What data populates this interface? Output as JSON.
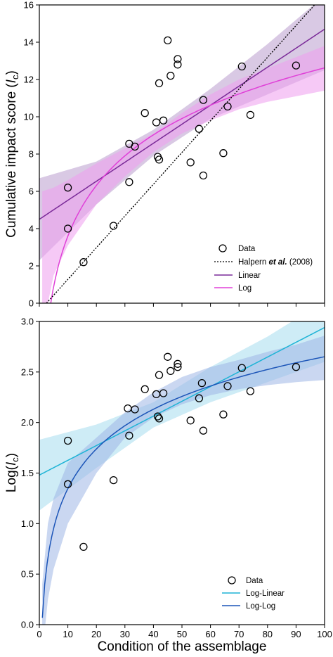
{
  "chart_data": [
    {
      "type": "scatter",
      "panel": "top",
      "ylabel": "Cumulative impact score",
      "ylabel_symbol": "I",
      "ylabel_sub": "c",
      "xlim": [
        0,
        100
      ],
      "ylim": [
        0,
        16
      ],
      "xticks": [
        0,
        10,
        20,
        30,
        40,
        50,
        60,
        70,
        80,
        90,
        100
      ],
      "yticks": [
        "0",
        "2",
        "4",
        "6",
        "8",
        "10",
        "12",
        "14",
        "16"
      ],
      "grid": false,
      "legend_position": "bottom-right",
      "legend": {
        "data": "Data",
        "halpern_prefix": "Halpern ",
        "halpern_etal": "et al.",
        "halpern_year": " (2008)",
        "linear": "Linear",
        "log": "Log"
      },
      "points": [
        {
          "x": 10,
          "y": 6.2
        },
        {
          "x": 10,
          "y": 4.0
        },
        {
          "x": 15.5,
          "y": 2.2
        },
        {
          "x": 26,
          "y": 4.15
        },
        {
          "x": 31.5,
          "y": 6.5
        },
        {
          "x": 31.5,
          "y": 8.55
        },
        {
          "x": 33.5,
          "y": 8.4
        },
        {
          "x": 37,
          "y": 10.2
        },
        {
          "x": 41,
          "y": 9.7
        },
        {
          "x": 41.5,
          "y": 7.85
        },
        {
          "x": 42,
          "y": 7.7
        },
        {
          "x": 42,
          "y": 11.8
        },
        {
          "x": 43.5,
          "y": 9.8
        },
        {
          "x": 45,
          "y": 14.1
        },
        {
          "x": 46,
          "y": 12.2
        },
        {
          "x": 48.5,
          "y": 13.1
        },
        {
          "x": 48.5,
          "y": 12.8
        },
        {
          "x": 53,
          "y": 7.55
        },
        {
          "x": 56,
          "y": 9.35
        },
        {
          "x": 57.5,
          "y": 10.9
        },
        {
          "x": 57.5,
          "y": 6.85
        },
        {
          "x": 64.5,
          "y": 8.05
        },
        {
          "x": 66,
          "y": 10.55
        },
        {
          "x": 71,
          "y": 12.7
        },
        {
          "x": 74,
          "y": 10.1
        },
        {
          "x": 90,
          "y": 12.75
        }
      ],
      "halpern_line": {
        "x": [
          2.5,
          96.5
        ],
        "y": [
          0,
          16
        ]
      },
      "linear_fit": {
        "intercept": 4.5,
        "slope": 0.102,
        "ci_low_x": [
          0,
          20,
          40,
          60,
          80,
          100
        ],
        "ci_low": [
          2.3,
          5.3,
          7.9,
          9.9,
          11.2,
          12.5
        ],
        "ci_high": [
          6.7,
          7.6,
          9.3,
          11.5,
          13.9,
          16.5
        ]
      },
      "log_fit": {
        "a": -5.43,
        "b": 3.92,
        "ci_x": [
          1,
          3,
          5,
          10,
          20,
          30,
          40,
          50,
          60,
          70,
          80,
          90,
          100
        ],
        "ci_low": [
          -3,
          0,
          1.5,
          3.1,
          5.3,
          6.8,
          8.1,
          9.1,
          9.8,
          10.4,
          10.8,
          11.1,
          11.4
        ],
        "ci_high": [
          6,
          6.1,
          6.2,
          6.6,
          7.5,
          8.3,
          9.1,
          10.2,
          11.2,
          12,
          12.6,
          13.2,
          13.8
        ]
      },
      "colors": {
        "linear": "#7a2a98",
        "linear_band": "#b99ccd",
        "log": "#e040d8",
        "log_band": "#ef9cee",
        "halpern": "#000000"
      }
    },
    {
      "type": "scatter",
      "panel": "bottom",
      "ylabel_prefix": "Log(",
      "ylabel_symbol": "I",
      "ylabel_sub": "c",
      "ylabel_suffix": ")",
      "xlabel": "Condition of the assemblage",
      "xlim": [
        0,
        100
      ],
      "ylim": [
        0,
        3.0
      ],
      "xticks": [
        "0",
        "10",
        "20",
        "30",
        "40",
        "50",
        "60",
        "70",
        "80",
        "90",
        "100"
      ],
      "yticks": [
        "0.0",
        "0.5",
        "1.0",
        "1.5",
        "2.0",
        "2.5",
        "3.0"
      ],
      "grid": false,
      "legend_position": "bottom-right",
      "legend": {
        "data": "Data",
        "loglinear": "Log-Linear",
        "loglog": "Log-Log"
      },
      "points": [
        {
          "x": 10,
          "y": 1.82
        },
        {
          "x": 10,
          "y": 1.39
        },
        {
          "x": 15.5,
          "y": 0.77
        },
        {
          "x": 26,
          "y": 1.43
        },
        {
          "x": 31,
          "y": 2.14
        },
        {
          "x": 31.5,
          "y": 1.87
        },
        {
          "x": 33.5,
          "y": 2.13
        },
        {
          "x": 37,
          "y": 2.33
        },
        {
          "x": 41,
          "y": 2.28
        },
        {
          "x": 41.5,
          "y": 2.06
        },
        {
          "x": 42,
          "y": 2.04
        },
        {
          "x": 42,
          "y": 2.47
        },
        {
          "x": 43.5,
          "y": 2.29
        },
        {
          "x": 45,
          "y": 2.65
        },
        {
          "x": 46,
          "y": 2.51
        },
        {
          "x": 48.5,
          "y": 2.58
        },
        {
          "x": 48.5,
          "y": 2.55
        },
        {
          "x": 53,
          "y": 2.02
        },
        {
          "x": 56,
          "y": 2.24
        },
        {
          "x": 57,
          "y": 2.39
        },
        {
          "x": 57.5,
          "y": 1.92
        },
        {
          "x": 64.5,
          "y": 2.08
        },
        {
          "x": 66,
          "y": 2.36
        },
        {
          "x": 71,
          "y": 2.54
        },
        {
          "x": 74,
          "y": 2.31
        },
        {
          "x": 90,
          "y": 2.55
        }
      ],
      "loglinear_fit": {
        "intercept": 1.48,
        "slope": 0.0146,
        "ci_x": [
          0,
          20,
          40,
          60,
          80,
          100
        ],
        "ci_low": [
          1.13,
          1.55,
          1.95,
          2.2,
          2.4,
          2.6
        ],
        "ci_high": [
          1.83,
          1.98,
          2.2,
          2.55,
          2.85,
          3.2
        ]
      },
      "loglog_fit": {
        "a": 0.04,
        "b": 0.567,
        "ci_x": [
          1,
          3,
          5,
          10,
          20,
          30,
          40,
          50,
          60,
          70,
          80,
          90,
          100
        ],
        "ci_low": [
          -0.3,
          0.25,
          0.55,
          1.0,
          1.5,
          1.85,
          2.05,
          2.18,
          2.27,
          2.33,
          2.37,
          2.4,
          2.42
        ],
        "ci_high": [
          0.4,
          1.0,
          1.25,
          1.6,
          1.85,
          2.1,
          2.3,
          2.45,
          2.55,
          2.62,
          2.7,
          2.77,
          2.86
        ]
      },
      "colors": {
        "loglinear": "#1fb4d6",
        "loglinear_band": "#a6dcee",
        "loglog": "#1c55b8",
        "loglog_band": "#9eb7e6"
      }
    }
  ]
}
